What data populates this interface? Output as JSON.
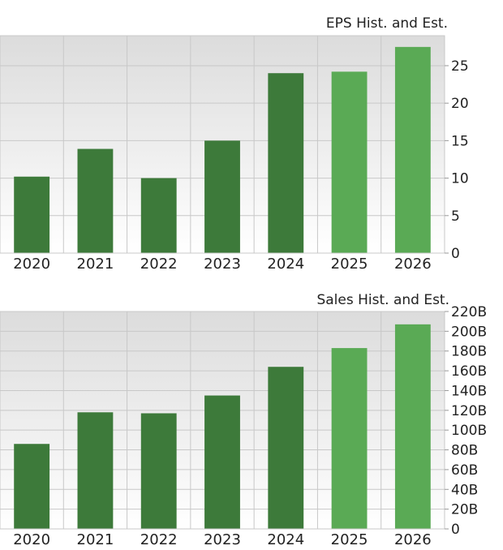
{
  "colors": {
    "historical": "#3d7a3a",
    "estimate": "#5aaa55",
    "plot_top": "#dcdcdc",
    "plot_bottom": "#ffffff",
    "grid": "#c8c8c8"
  },
  "chart_data": [
    {
      "type": "bar",
      "title": "EPS Hist. and Est.",
      "categories": [
        "2020",
        "2021",
        "2022",
        "2023",
        "2024",
        "2025",
        "2026"
      ],
      "values": [
        10.2,
        13.9,
        10.0,
        15.0,
        24.0,
        24.2,
        27.5
      ],
      "estimate": [
        false,
        false,
        false,
        false,
        false,
        true,
        true
      ],
      "ylim": [
        0,
        29
      ],
      "yticks": [
        0,
        5,
        10,
        15,
        20,
        25
      ],
      "ytick_labels": [
        "0",
        "5",
        "10",
        "15",
        "20",
        "25"
      ],
      "grid": true
    },
    {
      "type": "bar",
      "title": "Sales Hist. and Est.",
      "categories": [
        "2020",
        "2021",
        "2022",
        "2023",
        "2024",
        "2025",
        "2026"
      ],
      "values": [
        86,
        118,
        117,
        135,
        164,
        183,
        207
      ],
      "estimate": [
        false,
        false,
        false,
        false,
        false,
        true,
        true
      ],
      "ylim": [
        0,
        220
      ],
      "yticks": [
        0,
        20,
        40,
        60,
        80,
        100,
        120,
        140,
        160,
        180,
        200,
        220
      ],
      "ytick_labels": [
        "0",
        "20B",
        "40B",
        "60B",
        "80B",
        "100B",
        "120B",
        "140B",
        "160B",
        "180B",
        "200B",
        "220B"
      ],
      "grid": true
    }
  ]
}
